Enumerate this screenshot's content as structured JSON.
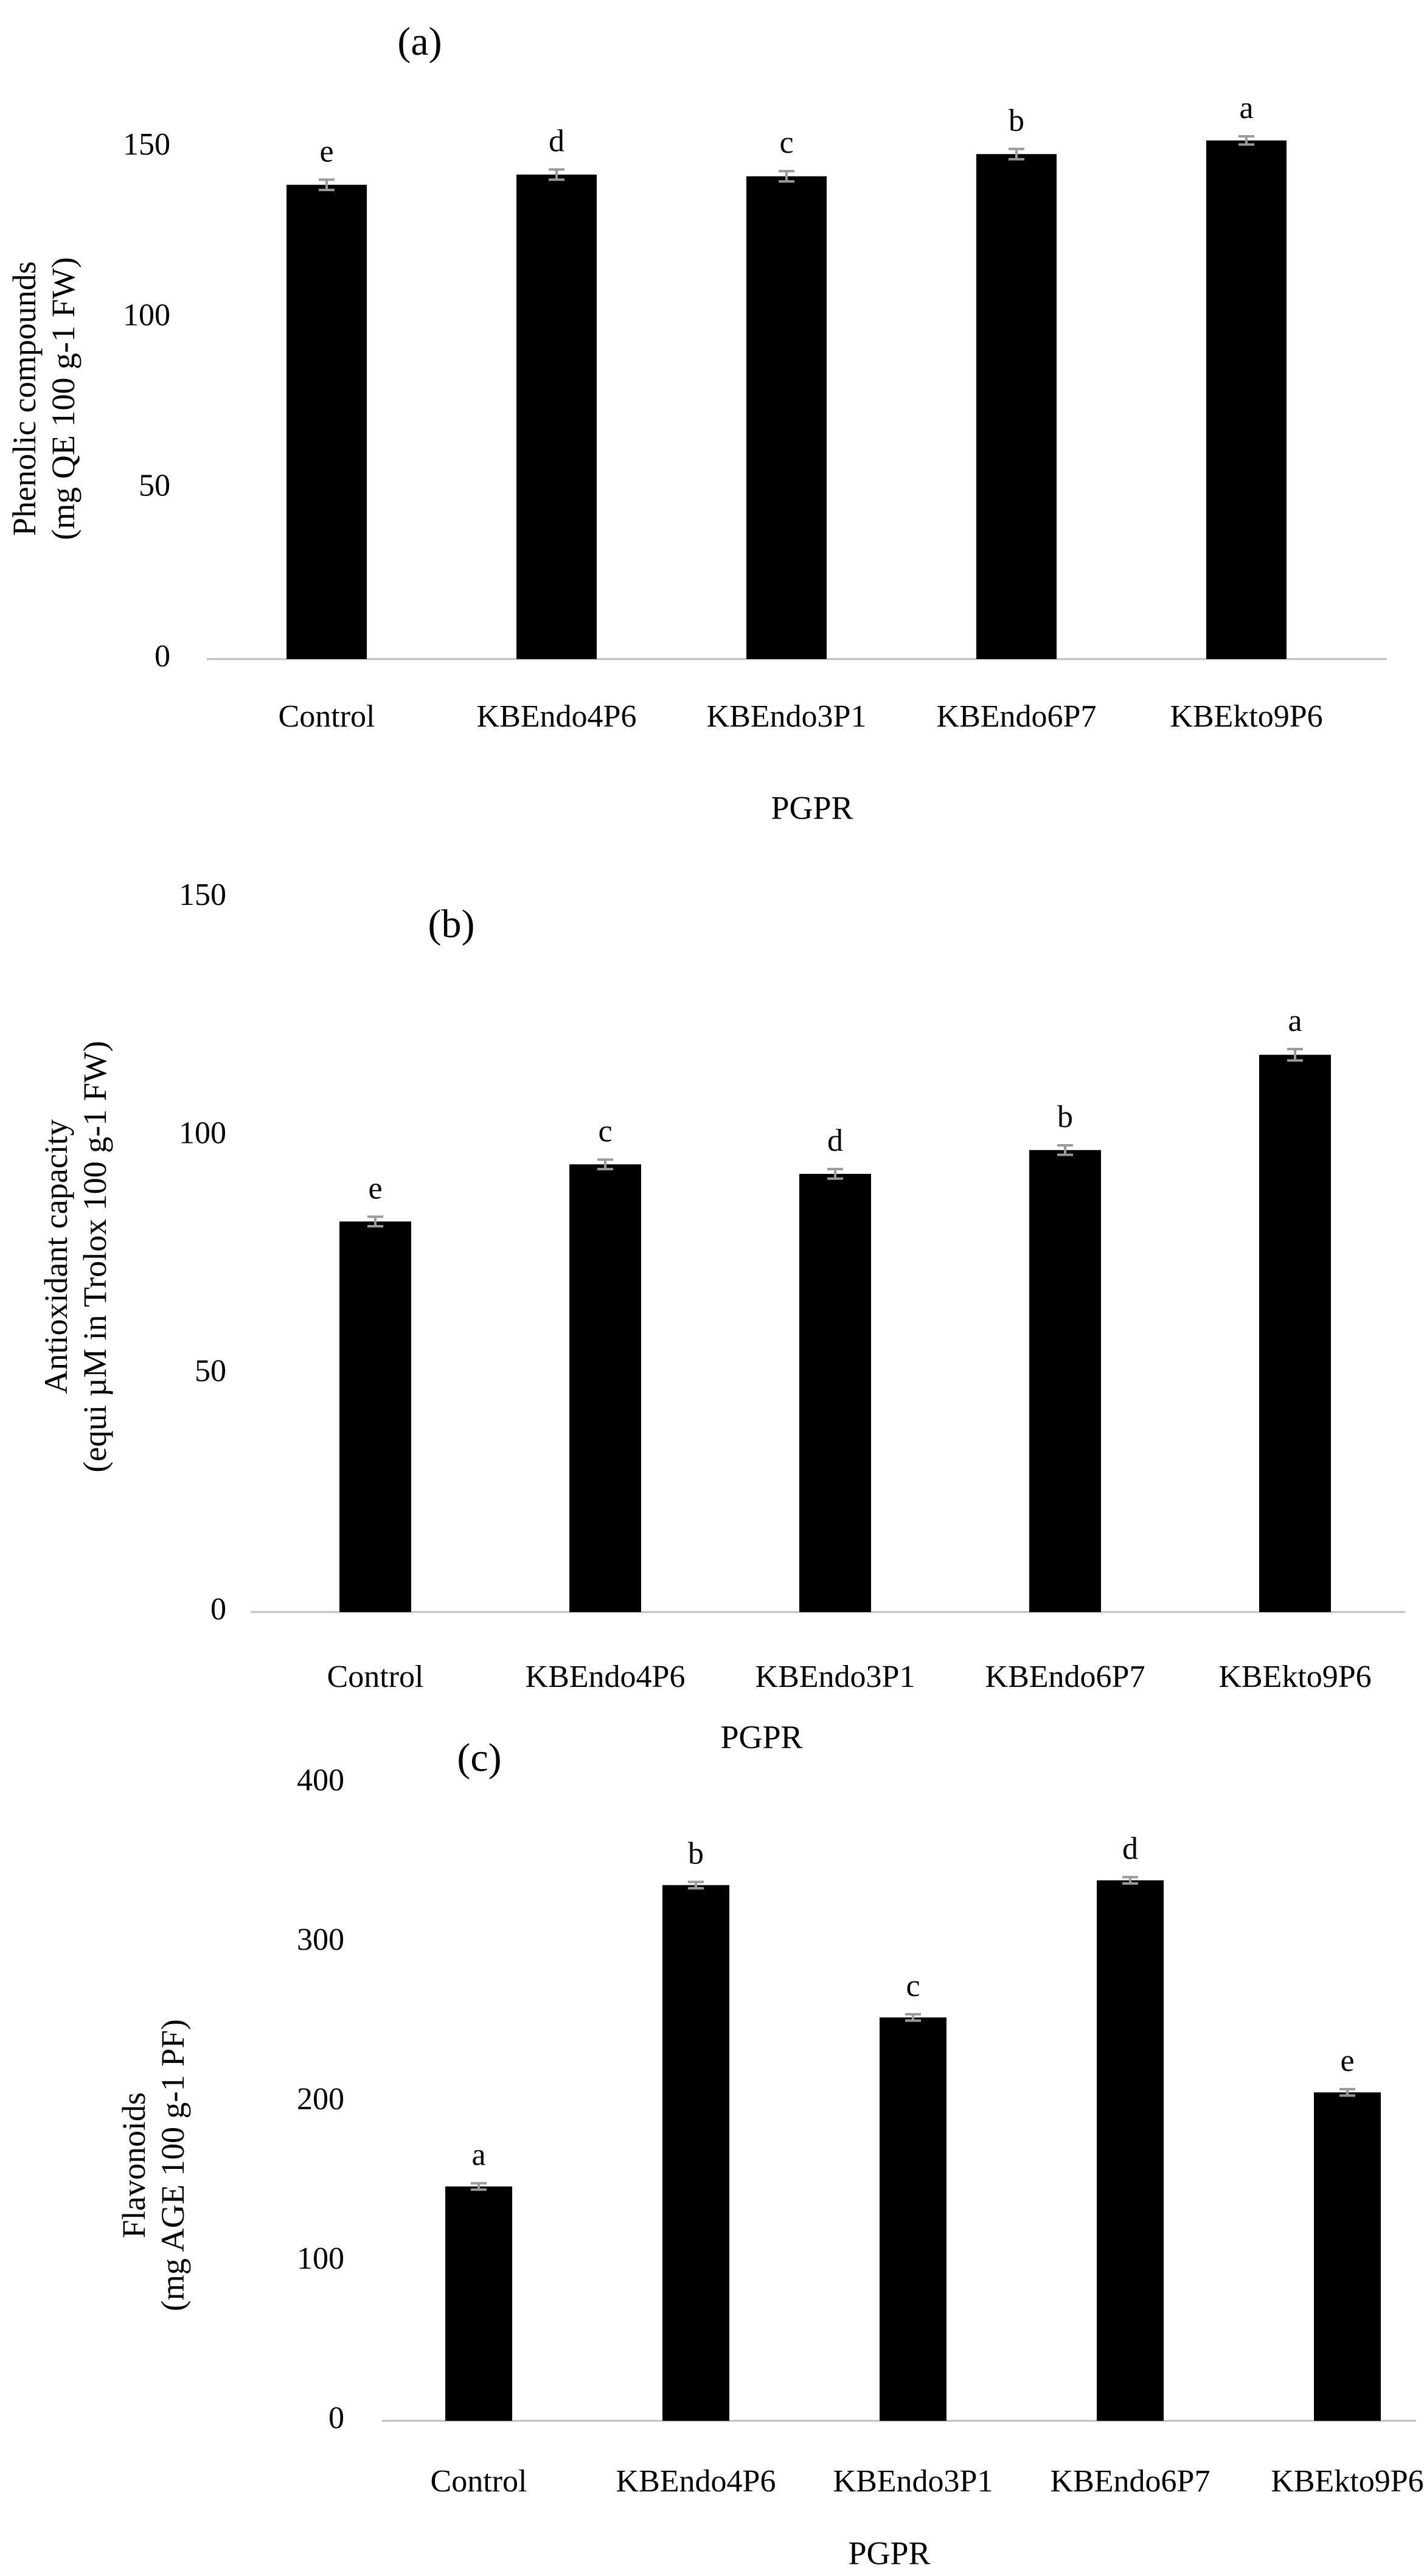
{
  "chart_data": [
    {
      "type": "bar",
      "panel": "(a)",
      "categories": [
        "Control",
        "KBEndo4P6",
        "KBEndo3P1",
        "KBEndo6P7",
        "KBEkto9P6"
      ],
      "values": [
        139,
        142,
        141.5,
        148,
        152
      ],
      "errors": [
        1.5,
        1.5,
        1.5,
        1.5,
        1.2
      ],
      "significance": [
        "e",
        "d",
        "c",
        "b",
        "a"
      ],
      "xlabel": "PGPR",
      "ylabel_lines": [
        "Phenolic compounds",
        "(mg QE 100 g-1 FW)"
      ],
      "ylim": [
        0,
        150
      ],
      "yticks": [
        0,
        50,
        100,
        150
      ]
    },
    {
      "type": "bar",
      "panel": "(b)",
      "categories": [
        "Control",
        "KBEndo4P6",
        "KBEndo3P1",
        "KBEndo6P7",
        "KBEkto9P6"
      ],
      "values": [
        82,
        94,
        92,
        97,
        117
      ],
      "errors": [
        1,
        1,
        1,
        1,
        1.2
      ],
      "significance": [
        "e",
        "c",
        "d",
        "b",
        "a"
      ],
      "xlabel": "PGPR",
      "ylabel_lines": [
        "Antioxidant capacity",
        "(equi µM in Trolox 100 g-1 FW)"
      ],
      "ylim": [
        0,
        150
      ],
      "yticks": [
        0,
        50,
        100,
        150
      ]
    },
    {
      "type": "bar",
      "panel": "(c)",
      "categories": [
        "Control",
        "KBEndo4P6",
        "KBEndo3P1",
        "KBEndo6P7",
        "KBEkto9P6"
      ],
      "values": [
        147,
        336,
        253,
        339,
        206
      ],
      "errors": [
        2,
        2,
        2,
        2,
        2
      ],
      "significance": [
        "a",
        "b",
        "c",
        "d",
        "e"
      ],
      "xlabel": "PGPR",
      "ylabel_lines": [
        "Flavonoids",
        "(mg AGE 100 g-1 PF)"
      ],
      "ylim": [
        0,
        400
      ],
      "yticks": [
        0,
        100,
        200,
        300,
        400
      ]
    }
  ]
}
